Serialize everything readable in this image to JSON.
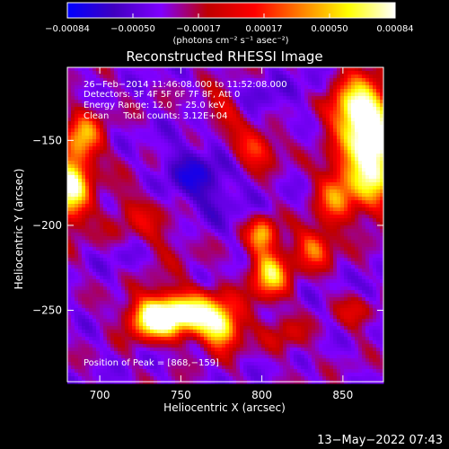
{
  "chart_data": {
    "type": "heatmap",
    "title": "Reconstructed RHESSI Image",
    "xlabel": "Heliocentric X (arcsec)",
    "ylabel": "Heliocentric Y (arcsec)",
    "xlim": [
      680,
      875
    ],
    "ylim": [
      -292,
      -107
    ],
    "xticks": [
      700,
      750,
      800,
      850
    ],
    "yticks": [
      -150,
      -200,
      -250
    ],
    "tick_labels": {
      "x": [
        "700",
        "750",
        "800",
        "850"
      ],
      "y": [
        "−150",
        "−200",
        "−250"
      ]
    },
    "colorbar": {
      "range": [
        -0.00084,
        0.00084
      ],
      "tick_labels": [
        "−0.00084",
        "−0.00050",
        "−0.00017",
        "0.00017",
        "0.00050",
        "0.00084"
      ],
      "units": "(photons cm⁻² s⁻¹ asec⁻²)",
      "colormap": [
        "#0000ff",
        "#4000c0",
        "#8000ff",
        "#c00000",
        "#ff0000",
        "#ff8000",
        "#ffff00",
        "#ffffff"
      ]
    },
    "annotations": {
      "time_range": "26−Feb−2014 11:46:08.000 to 11:52:08.000",
      "detectors": "Detectors: 3F 4F 5F 6F 7F 8F, Att 0",
      "energy": "Energy Range: 12.0 − 25.0 keV",
      "clean": "Clean     Total counts: 3.12E+04",
      "peak": "Position of Peak = [868,−159]"
    },
    "sources": [
      {
        "x": 868,
        "y": -159,
        "peak": 1.0,
        "sx": 12,
        "sy": 20
      },
      {
        "x": 858,
        "y": -130,
        "peak": 0.75,
        "sx": 12,
        "sy": 12
      },
      {
        "x": 755,
        "y": -252,
        "peak": 0.85,
        "sx": 18,
        "sy": 9
      },
      {
        "x": 733,
        "y": -255,
        "peak": 0.7,
        "sx": 10,
        "sy": 8
      },
      {
        "x": 775,
        "y": -262,
        "peak": 0.6,
        "sx": 8,
        "sy": 8
      },
      {
        "x": 682,
        "y": -178,
        "peak": 0.85,
        "sx": 8,
        "sy": 14
      },
      {
        "x": 690,
        "y": -148,
        "peak": 0.55,
        "sx": 8,
        "sy": 10
      },
      {
        "x": 805,
        "y": -228,
        "peak": 0.7,
        "sx": 8,
        "sy": 10
      },
      {
        "x": 800,
        "y": -205,
        "peak": 0.55,
        "sx": 6,
        "sy": 7
      },
      {
        "x": 795,
        "y": -155,
        "peak": 0.45,
        "sx": 10,
        "sy": 8
      },
      {
        "x": 832,
        "y": -213,
        "peak": 0.5,
        "sx": 8,
        "sy": 8
      },
      {
        "x": 778,
        "y": -130,
        "peak": 0.4,
        "sx": 10,
        "sy": 8
      },
      {
        "x": 845,
        "y": -182,
        "peak": 0.45,
        "sx": 8,
        "sy": 12
      },
      {
        "x": 730,
        "y": -195,
        "peak": 0.25,
        "sx": 18,
        "sy": 20
      },
      {
        "x": 860,
        "y": -250,
        "peak": 0.25,
        "sx": 8,
        "sy": 8
      },
      {
        "x": 815,
        "y": -265,
        "peak": 0.2,
        "sx": 10,
        "sy": 8
      }
    ],
    "blue_regions": [
      {
        "x": 755,
        "y": -175,
        "sx": 20,
        "sy": 16,
        "depth": 0.65
      },
      {
        "x": 790,
        "y": -128,
        "sx": 16,
        "sy": 8,
        "depth": 0.45
      },
      {
        "x": 835,
        "y": -120,
        "sx": 10,
        "sy": 6,
        "depth": 0.35
      },
      {
        "x": 868,
        "y": -240,
        "sx": 6,
        "sy": 6,
        "depth": 0.45
      },
      {
        "x": 718,
        "y": -218,
        "sx": 10,
        "sy": 10,
        "depth": 0.35
      }
    ]
  },
  "footer": {
    "timestamp": "13−May−2022 07:43"
  }
}
